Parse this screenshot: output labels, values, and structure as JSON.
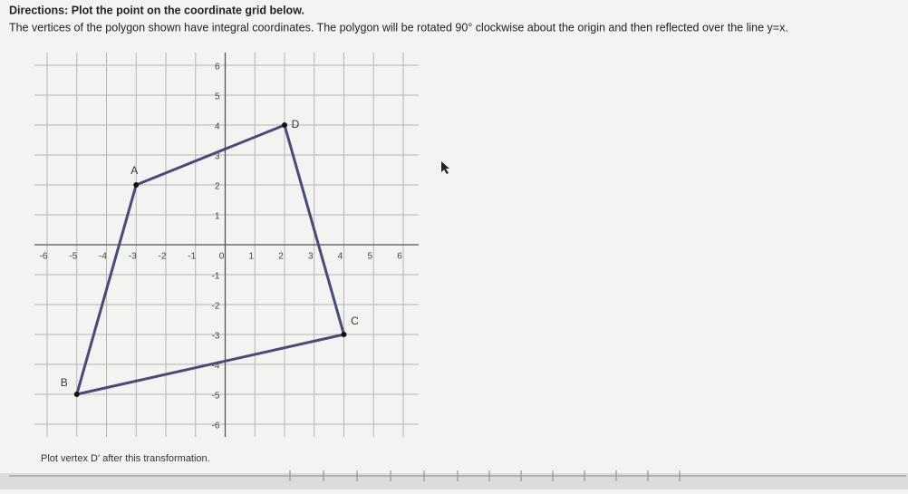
{
  "header": {
    "title": "Directions: Plot the point on the coordinate grid below.",
    "instruction": "The vertices of the polygon shown have integral coordinates. The polygon will be rotated 90° clockwise about the origin and then reflected over the line y=x."
  },
  "grid": {
    "xlim": [
      -6,
      6
    ],
    "ylim": [
      -6,
      6
    ],
    "xticks": [
      -6,
      -5,
      -4,
      -3,
      -2,
      -1,
      0,
      1,
      2,
      3,
      4,
      5,
      6
    ],
    "yticks": [
      6,
      5,
      4,
      3,
      2,
      1,
      -1,
      -2,
      -3,
      -4,
      -5,
      -6
    ],
    "vertices": [
      {
        "label": "A",
        "x": -3,
        "y": 2
      },
      {
        "label": "D",
        "x": 2,
        "y": 4
      },
      {
        "label": "C",
        "x": 4,
        "y": -3
      },
      {
        "label": "B",
        "x": -5,
        "y": -5
      }
    ]
  },
  "prompt": "Plot vertex D' after this transformation."
}
